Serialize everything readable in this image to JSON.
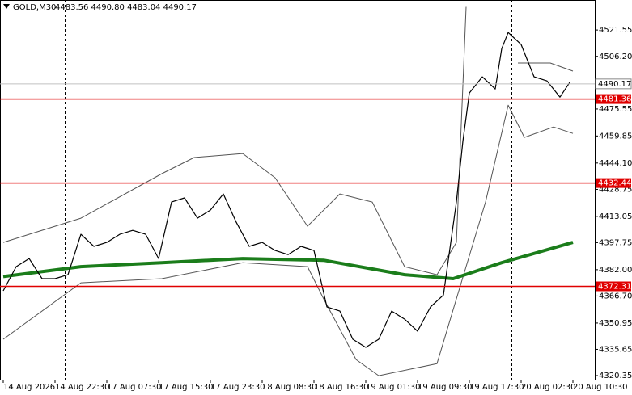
{
  "chart_data": {
    "type": "line",
    "symbol": "GOLD,M30",
    "ohlc": "4483.56 4490.80 4483.04 4490.17",
    "xlim": [
      -1,
      182.75
    ],
    "ylim": [
      4318,
      4539
    ],
    "yticks": [
      4521.55,
      {
        "value": 4506.2,
        "label": "4506.20"
      },
      4475.55,
      4459.85,
      {
        "value": 4444.1,
        "label": "4444.10"
      },
      4428.75,
      4413.05,
      4397.75,
      {
        "value": 4382,
        "label": "4382.00"
      },
      {
        "value": 4366.7,
        "label": "4366.70"
      },
      4350.95,
      4335.65,
      4320.35
    ],
    "xticks": [
      {
        "value": 0,
        "label": "14 Aug 2026"
      },
      {
        "value": 16,
        "label": "14 Aug 22:30"
      },
      {
        "value": 32,
        "label": "17 Aug 07:30"
      },
      {
        "value": 48,
        "label": "17 Aug 15:30"
      },
      {
        "value": 64,
        "label": "17 Aug 23:30"
      },
      {
        "value": 80,
        "label": "18 Aug 08:30"
      },
      {
        "value": 96,
        "label": "18 Aug 16:30"
      },
      {
        "value": 112,
        "label": "19 Aug 01:30"
      },
      {
        "value": 128,
        "label": "19 Aug 09:30"
      },
      {
        "value": 144,
        "label": "19 Aug 17:30"
      },
      {
        "value": 160,
        "label": "20 Aug 02:30"
      },
      {
        "value": 176,
        "label": "20 Aug 10:30"
      }
    ],
    "day_separators": [
      19,
      65,
      111,
      157
    ],
    "levels": [
      4481.36,
      4432.44,
      4372.31
    ],
    "level_color": "#e00000",
    "last_price": 4490.17,
    "series": [
      {
        "color": "#000000",
        "width": 1.2,
        "x": [
          0,
          4,
          8,
          12,
          16,
          20,
          24,
          28,
          32,
          36,
          40,
          44,
          48,
          52,
          56,
          60,
          64,
          68,
          72,
          76,
          80,
          84,
          88,
          92,
          96,
          100,
          104,
          108,
          112,
          116,
          120,
          124,
          128,
          132,
          136,
          140,
          142,
          144,
          148,
          152,
          154,
          156,
          160,
          164,
          168,
          172,
          175
        ],
        "values": [
          4369.7,
          4383.8,
          4388.5,
          4376.8,
          4376.8,
          4379.1,
          4402.6,
          4395.6,
          4397.9,
          4402.6,
          4404.9,
          4402.6,
          4388.5,
          4421.4,
          4423.8,
          4412.0,
          4416.7,
          4426.1,
          4409.6,
          4395.6,
          4397.9,
          4393.2,
          4390.8,
          4395.6,
          4393.2,
          4360.3,
          4357.9,
          4341.5,
          4336.8,
          4341.5,
          4357.9,
          4353.2,
          4346.2,
          4360.3,
          4367.3,
          4421.4,
          4456.7,
          4484.9,
          4494.3,
          4487.2,
          4510.7,
          4520.1,
          4513.1,
          4494.3,
          4491.9,
          4482.5,
          4491.0
        ]
      },
      {
        "color": "#1b7d1b",
        "width": 4,
        "x": [
          0,
          24,
          49,
          74,
          99,
          124,
          139,
          154,
          176
        ],
        "values": [
          4378.0,
          4383.8,
          4386.1,
          4388.5,
          4387.5,
          4379.1,
          4376.8,
          4386.1,
          4397.9
        ]
      },
      {
        "color": "#555555",
        "width": 1,
        "x": [
          0,
          24,
          49,
          59,
          74,
          84,
          94,
          104,
          114,
          124,
          134,
          140,
          143,
          150,
          159,
          169,
          176
        ],
        "values": [
          4397.9,
          4412.0,
          4437.9,
          4447.3,
          4449.6,
          4435.5,
          4407.3,
          4426.1,
          4421.4,
          4383.8,
          4379.1,
          4397.9,
          4535.0,
          null,
          4502.3,
          4502.3,
          4497.6
        ]
      },
      {
        "color": "#555555",
        "width": 1,
        "x": [
          0,
          24,
          49,
          74,
          94,
          99,
          109,
          116,
          134,
          140,
          149,
          156,
          161,
          170,
          176
        ],
        "values": [
          4341.5,
          4374.4,
          4376.8,
          4386.1,
          4383.8,
          4365.0,
          4329.7,
          4320.3,
          4327.3,
          4365.0,
          4421.4,
          4477.8,
          4459.0,
          4465.1,
          4461.3
        ]
      }
    ]
  }
}
